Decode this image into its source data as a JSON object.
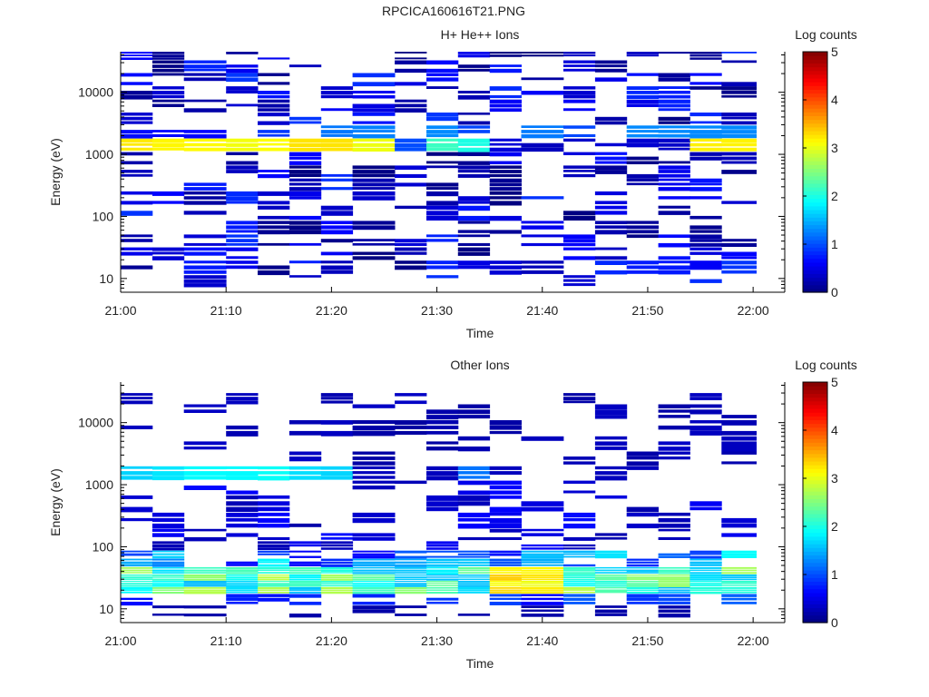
{
  "figure_title": "RPCICA160616T21.PNG",
  "chart_data": [
    {
      "type": "heatmap",
      "title": "H+ He++ Ions",
      "xlabel": "Time",
      "ylabel": "Energy (eV)",
      "x_ticks": [
        "21:00",
        "21:10",
        "21:20",
        "21:30",
        "21:40",
        "21:50",
        "22:00"
      ],
      "x_range": [
        "21:00",
        "22:03"
      ],
      "y_scale": "log",
      "y_ticks": [
        "10",
        "100",
        "1000",
        "10000"
      ],
      "y_range": [
        6,
        45000
      ],
      "time_bins": [
        "21:00",
        "21:03",
        "21:06",
        "21:10",
        "21:13",
        "21:16",
        "21:19",
        "21:22",
        "21:26",
        "21:29",
        "21:32",
        "21:35",
        "21:38",
        "21:42",
        "21:45",
        "21:48",
        "21:51",
        "21:54",
        "21:57"
      ],
      "energy_bins": [
        8.5,
        15,
        25,
        40,
        65,
        110,
        200,
        320,
        520,
        840,
        1400,
        2300,
        3700,
        6000,
        9700,
        16000,
        26000,
        41000
      ],
      "colorbar": {
        "label": "Log counts",
        "ticks": [
          "0",
          "1",
          "2",
          "3",
          "4",
          "5"
        ],
        "range": [
          0,
          5
        ]
      }
    },
    {
      "type": "heatmap",
      "title": "Other Ions",
      "xlabel": "Time",
      "ylabel": "Energy (eV)",
      "x_ticks": [
        "21:00",
        "21:10",
        "21:20",
        "21:30",
        "21:40",
        "21:50",
        "22:00"
      ],
      "x_range": [
        "21:00",
        "22:03"
      ],
      "y_scale": "log",
      "y_ticks": [
        "10",
        "100",
        "1000",
        "10000"
      ],
      "y_range": [
        6,
        45000
      ],
      "time_bins": [
        "21:00",
        "21:03",
        "21:06",
        "21:10",
        "21:13",
        "21:16",
        "21:19",
        "21:22",
        "21:26",
        "21:29",
        "21:32",
        "21:35",
        "21:38",
        "21:42",
        "21:45",
        "21:48",
        "21:51",
        "21:54",
        "21:57"
      ],
      "energy_bins": [
        8.5,
        15,
        20,
        25,
        32,
        40,
        55,
        75,
        100,
        150,
        250,
        500,
        900,
        1500,
        2600,
        4500,
        8000,
        15000,
        26000
      ],
      "colorbar": {
        "label": "Log counts",
        "ticks": [
          "0",
          "1",
          "2",
          "3",
          "4",
          "5"
        ],
        "range": [
          0,
          5
        ]
      }
    }
  ]
}
